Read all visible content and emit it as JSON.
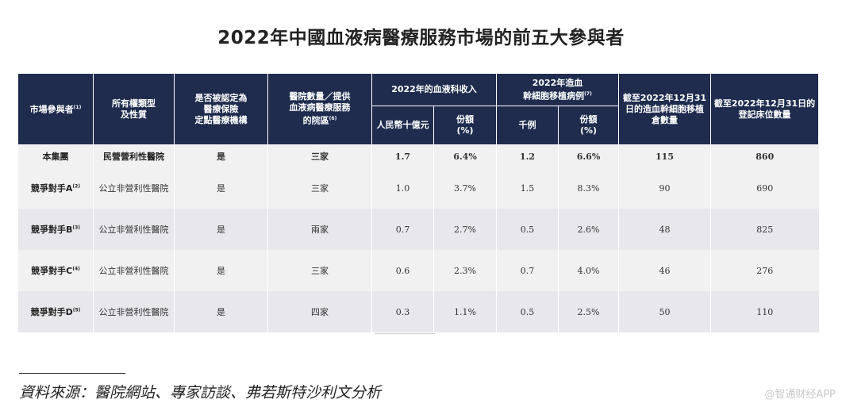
{
  "title": "2022年中國血液病醫療服務市場的前五大參與者",
  "headers": {
    "participant": "市場參與者",
    "participant_note": "(1)",
    "ownership": "所有權類型\n及性質",
    "insurance": "是否被認定為\n醫療保險\n定點醫療機構",
    "hospitals": "醫院數量／提供\n血液病醫療服務\n的院區",
    "hospitals_note": "(6)",
    "revenue_group": "2022年的血液科收入",
    "revenue_rmb": "人民幣十億元",
    "revenue_share": "份額\n(%)",
    "transplant_group": "2022年造血\n幹細胞移植病例",
    "transplant_note": "(7)",
    "transplant_k": "千例",
    "transplant_share": "份額\n(%)",
    "transplant_beds": "截至2022年12月31\n日的造血幹細胞移植\n倉數量",
    "beds": "截至2022年12月31日的\n登記床位數量"
  },
  "rows": [
    {
      "name": "本集團",
      "note": "",
      "ownership": "民營營利性醫院",
      "insurance": "是",
      "hospitals": "三家",
      "revenue": "1.7",
      "revenue_share": "6.4%",
      "cases": "1.2",
      "cases_share": "6.6%",
      "htx_beds": "115",
      "beds": "860"
    },
    {
      "name": "競爭對手A",
      "note": "(2)",
      "ownership": "公立非營利性醫院",
      "insurance": "是",
      "hospitals": "三家",
      "revenue": "1.0",
      "revenue_share": "3.7%",
      "cases": "1.5",
      "cases_share": "8.3%",
      "htx_beds": "90",
      "beds": "690"
    },
    {
      "name": "競爭對手B",
      "note": "(3)",
      "ownership": "公立非營利性醫院",
      "insurance": "是",
      "hospitals": "兩家",
      "revenue": "0.7",
      "revenue_share": "2.7%",
      "cases": "0.5",
      "cases_share": "2.6%",
      "htx_beds": "48",
      "beds": "825"
    },
    {
      "name": "競爭對手C",
      "note": "(4)",
      "ownership": "公立非營利性醫院",
      "insurance": "是",
      "hospitals": "三家",
      "revenue": "0.6",
      "revenue_share": "2.3%",
      "cases": "0.7",
      "cases_share": "4.0%",
      "htx_beds": "46",
      "beds": "276"
    },
    {
      "name": "競爭對手D",
      "note": "(5)",
      "ownership": "公立非營利性醫院",
      "insurance": "是",
      "hospitals": "四家",
      "revenue": "0.3",
      "revenue_share": "1.1%",
      "cases": "0.5",
      "cases_share": "2.5%",
      "htx_beds": "50",
      "beds": "110"
    }
  ],
  "source": "資料來源：醫院網站、專家訪談、弗若斯特沙利文分析",
  "watermark": "@智通财经APP"
}
